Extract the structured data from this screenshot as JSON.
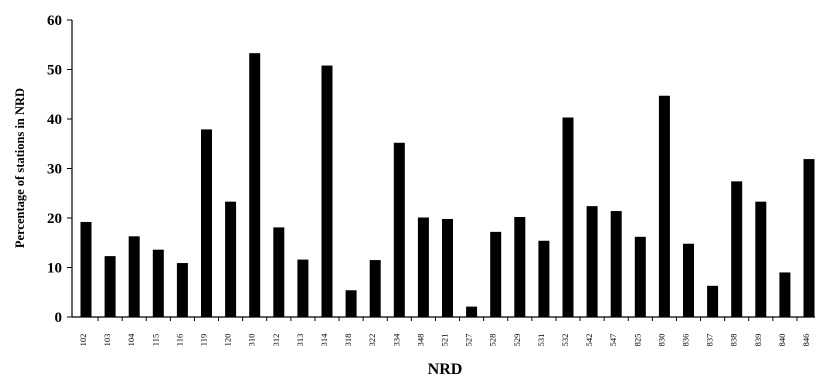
{
  "chart_data": {
    "type": "bar",
    "title": "",
    "xlabel": "NRD",
    "ylabel": "Percentage of stations in NRD",
    "ylim": [
      0,
      60
    ],
    "yticks": [
      "0",
      "10",
      "20",
      "30",
      "40",
      "50",
      "60"
    ],
    "grid": false,
    "legend": "none",
    "bar_color": "#000000",
    "categories": [
      "102",
      "103",
      "104",
      "115",
      "116",
      "119",
      "120",
      "310",
      "312",
      "313",
      "314",
      "318",
      "322",
      "334",
      "348",
      "521",
      "527",
      "528",
      "529",
      "531",
      "532",
      "542",
      "547",
      "825",
      "830",
      "836",
      "837",
      "838",
      "839",
      "840",
      "846"
    ],
    "values": [
      19.2,
      12.3,
      16.3,
      13.6,
      10.9,
      37.9,
      23.3,
      53.3,
      18.1,
      11.6,
      50.8,
      5.4,
      11.5,
      35.2,
      20.1,
      19.8,
      2.1,
      17.2,
      20.2,
      15.4,
      40.3,
      22.4,
      21.4,
      16.2,
      44.7,
      14.8,
      6.3,
      27.4,
      23.3,
      9.0,
      31.9
    ]
  }
}
